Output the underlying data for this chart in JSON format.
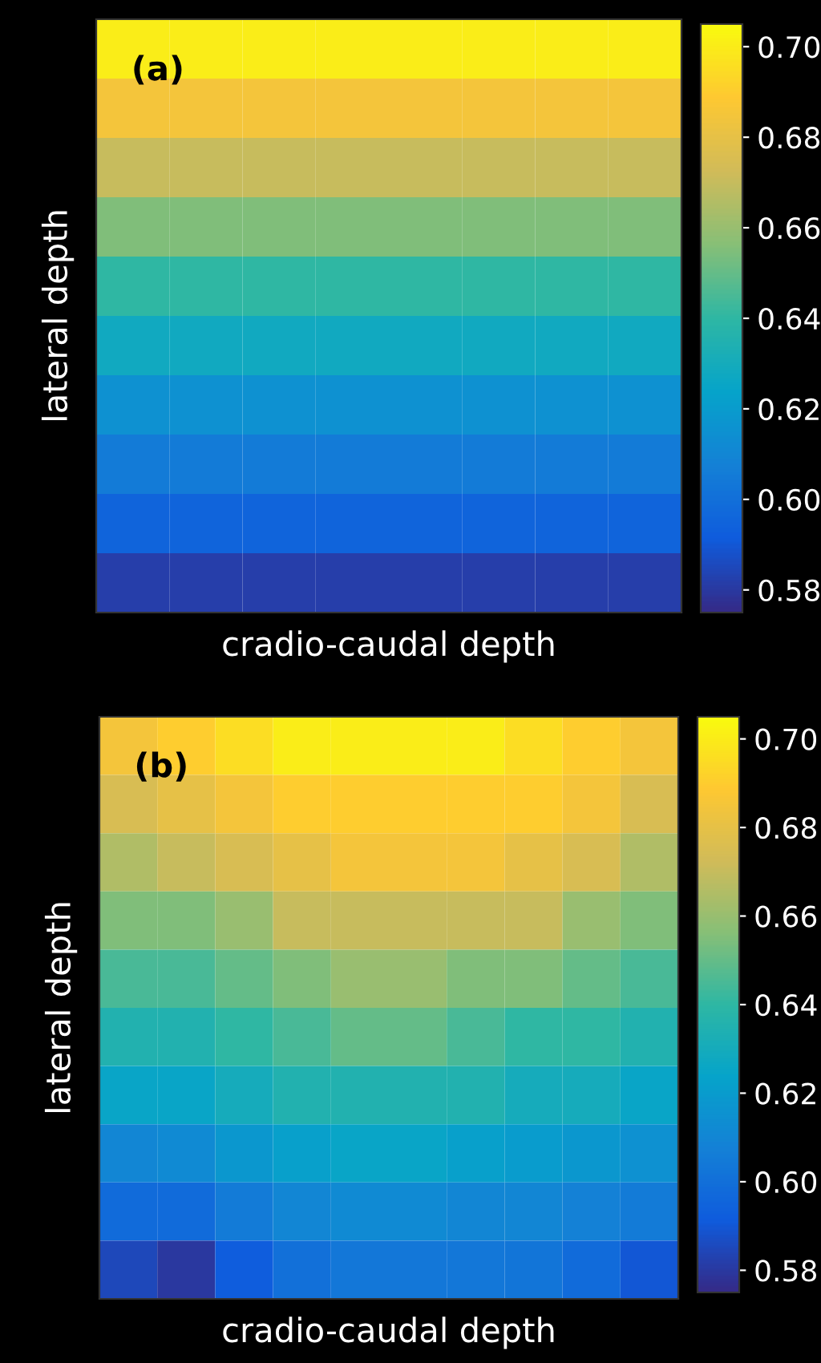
{
  "chart_data": [
    {
      "type": "heatmap",
      "annotations": [
        "(a)"
      ],
      "xlabel": "cradio-caudal depth",
      "ylabel": "lateral depth",
      "tick_labels": false,
      "categories": [
        null,
        null,
        null,
        null,
        null,
        null,
        null,
        null
      ],
      "y_categories": [
        null,
        null,
        null,
        null,
        null,
        null,
        null,
        null,
        null,
        null
      ],
      "cells": [
        [
          0.7,
          0.7,
          0.7,
          0.7,
          0.7,
          0.7,
          0.7,
          0.7
        ],
        [
          0.685,
          0.685,
          0.685,
          0.685,
          0.685,
          0.685,
          0.685,
          0.685
        ],
        [
          0.67,
          0.67,
          0.67,
          0.67,
          0.67,
          0.67,
          0.67,
          0.67
        ],
        [
          0.655,
          0.655,
          0.655,
          0.655,
          0.655,
          0.655,
          0.655,
          0.655
        ],
        [
          0.64,
          0.64,
          0.64,
          0.64,
          0.64,
          0.64,
          0.64,
          0.64
        ],
        [
          0.628,
          0.628,
          0.628,
          0.628,
          0.628,
          0.628,
          0.628,
          0.628
        ],
        [
          0.615,
          0.615,
          0.615,
          0.615,
          0.615,
          0.615,
          0.615,
          0.615
        ],
        [
          0.605,
          0.605,
          0.605,
          0.605,
          0.605,
          0.605,
          0.605,
          0.605
        ],
        [
          0.595,
          0.595,
          0.595,
          0.595,
          0.595,
          0.595,
          0.595,
          0.595
        ],
        [
          0.582,
          0.582,
          0.582,
          0.582,
          0.582,
          0.582,
          0.582,
          0.582
        ]
      ],
      "clim": [
        0.575,
        0.705
      ],
      "cticks": [
        {
          "value": 0.58,
          "label": "0.58"
        },
        {
          "value": 0.6,
          "label": "0.60"
        },
        {
          "value": 0.62,
          "label": "0.62"
        },
        {
          "value": 0.64,
          "label": "0.64"
        },
        {
          "value": 0.66,
          "label": "0.66"
        },
        {
          "value": 0.68,
          "label": "0.68"
        },
        {
          "value": 0.7,
          "label": "0.70"
        }
      ]
    },
    {
      "type": "heatmap",
      "annotations": [
        "(b)"
      ],
      "xlabel": "cradio-caudal depth",
      "ylabel": "lateral depth",
      "tick_labels": false,
      "categories": [
        null,
        null,
        null,
        null,
        null,
        null,
        null,
        null,
        null,
        null
      ],
      "y_categories": [
        null,
        null,
        null,
        null,
        null,
        null,
        null,
        null,
        null,
        null
      ],
      "cells": [
        [
          0.685,
          0.69,
          0.695,
          0.7,
          0.7,
          0.7,
          0.7,
          0.695,
          0.69,
          0.685
        ],
        [
          0.675,
          0.68,
          0.685,
          0.69,
          0.69,
          0.69,
          0.69,
          0.69,
          0.685,
          0.675
        ],
        [
          0.665,
          0.67,
          0.675,
          0.68,
          0.685,
          0.685,
          0.685,
          0.68,
          0.675,
          0.665
        ],
        [
          0.655,
          0.655,
          0.66,
          0.67,
          0.67,
          0.67,
          0.67,
          0.67,
          0.66,
          0.655
        ],
        [
          0.645,
          0.645,
          0.65,
          0.655,
          0.66,
          0.66,
          0.655,
          0.655,
          0.65,
          0.645
        ],
        [
          0.635,
          0.635,
          0.64,
          0.645,
          0.65,
          0.65,
          0.645,
          0.64,
          0.64,
          0.635
        ],
        [
          0.625,
          0.625,
          0.63,
          0.635,
          0.635,
          0.635,
          0.635,
          0.63,
          0.63,
          0.625
        ],
        [
          0.61,
          0.612,
          0.618,
          0.622,
          0.625,
          0.625,
          0.622,
          0.62,
          0.618,
          0.615
        ],
        [
          0.598,
          0.598,
          0.605,
          0.61,
          0.612,
          0.612,
          0.61,
          0.61,
          0.608,
          0.605
        ],
        [
          0.585,
          0.58,
          0.592,
          0.6,
          0.603,
          0.603,
          0.603,
          0.602,
          0.598,
          0.59
        ]
      ],
      "clim": [
        0.575,
        0.705
      ],
      "cticks": [
        {
          "value": 0.58,
          "label": "0.58"
        },
        {
          "value": 0.6,
          "label": "0.60"
        },
        {
          "value": 0.62,
          "label": "0.62"
        },
        {
          "value": 0.64,
          "label": "0.64"
        },
        {
          "value": 0.66,
          "label": "0.66"
        },
        {
          "value": 0.68,
          "label": "0.68"
        },
        {
          "value": 0.7,
          "label": "0.70"
        }
      ]
    }
  ]
}
